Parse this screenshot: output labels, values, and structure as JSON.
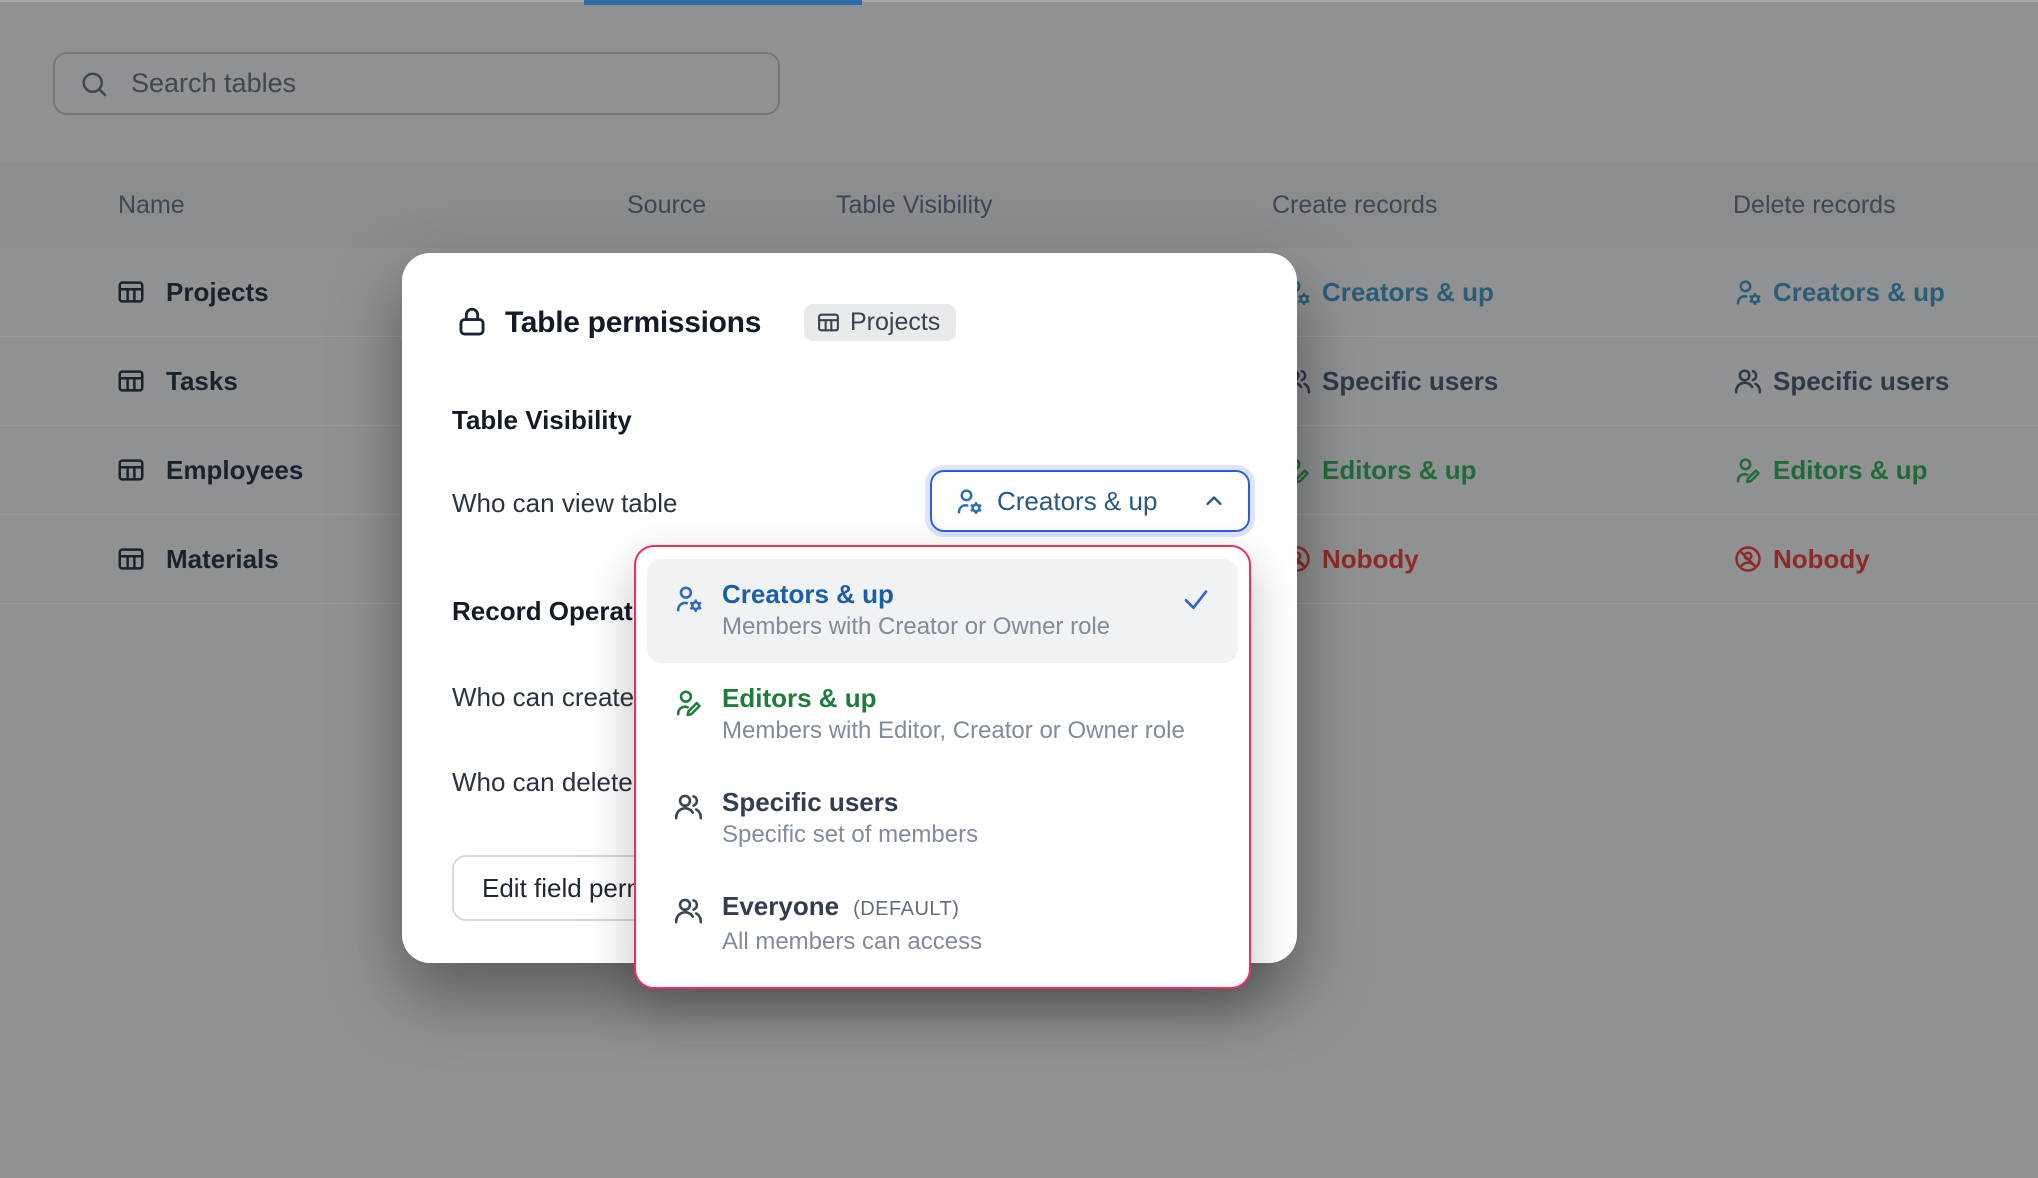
{
  "topbar": {
    "active_tab_indicator_color": "#2e6ca7"
  },
  "search": {
    "placeholder": "Search tables"
  },
  "table": {
    "headers": [
      "Name",
      "Source",
      "Table Visibility",
      "Create records",
      "Delete records"
    ],
    "rows": [
      {
        "name": "Projects",
        "create": "Creators & up",
        "create_type": "creators",
        "delete": "Creators & up",
        "delete_type": "creators"
      },
      {
        "name": "Tasks",
        "create": "Specific users",
        "create_type": "specific",
        "delete": "Specific users",
        "delete_type": "specific"
      },
      {
        "name": "Employees",
        "create": "Editors & up",
        "create_type": "editors",
        "delete": "Editors & up",
        "delete_type": "editors"
      },
      {
        "name": "Materials",
        "create": "Nobody",
        "create_type": "nobody",
        "delete": "Nobody",
        "delete_type": "nobody"
      }
    ]
  },
  "modal": {
    "title": "Table permissions",
    "table_badge": "Projects",
    "section_visibility": "Table Visibility",
    "view_label": "Who can view table",
    "dropdown_value": "Creators & up",
    "section_records": "Record Operations",
    "create_label": "Who can create records",
    "delete_label": "Who can delete records",
    "edit_fields_button": "Edit field permissions"
  },
  "dropdown_menu": {
    "items": [
      {
        "label": "Creators & up",
        "badge": "",
        "desc": "Members with Creator or Owner role",
        "type": "menu_blue",
        "icon": "user-cog",
        "selected": true
      },
      {
        "label": "Editors & up",
        "badge": "",
        "desc": "Members with Editor, Creator or Owner role",
        "type": "menu_green",
        "icon": "user-pen",
        "selected": false
      },
      {
        "label": "Specific users",
        "badge": "",
        "desc": "Specific set of members",
        "type": "menu_dark",
        "icon": "users",
        "selected": false
      },
      {
        "label": "Everyone",
        "badge": "(DEFAULT)",
        "desc": "All members can access",
        "type": "menu_dark",
        "icon": "users",
        "selected": false
      }
    ]
  },
  "colors": {
    "creators": {
      "text": "#2c5c78",
      "icon": "#2c5c78"
    },
    "specific": {
      "text": "#2f3948",
      "icon": "#2f3948"
    },
    "editors": {
      "text": "#226b39",
      "icon": "#226b39"
    },
    "nobody": {
      "text": "#8e2b26",
      "icon": "#8e2b26"
    },
    "menu_blue": {
      "text": "#1d5fa6",
      "icon": "#2b6cc0"
    },
    "menu_green": {
      "text": "#1e7c3e",
      "icon": "#1e7c3e"
    },
    "menu_dark": {
      "text": "#333d4d",
      "icon": "#3a4554"
    },
    "accent_border": "#2e5ee0",
    "menu_border": "#ee2e5f",
    "check": "#2e62da"
  },
  "icon_types": {
    "creators": "user-cog",
    "specific": "users",
    "editors": "user-pen",
    "nobody": "user-ban"
  }
}
